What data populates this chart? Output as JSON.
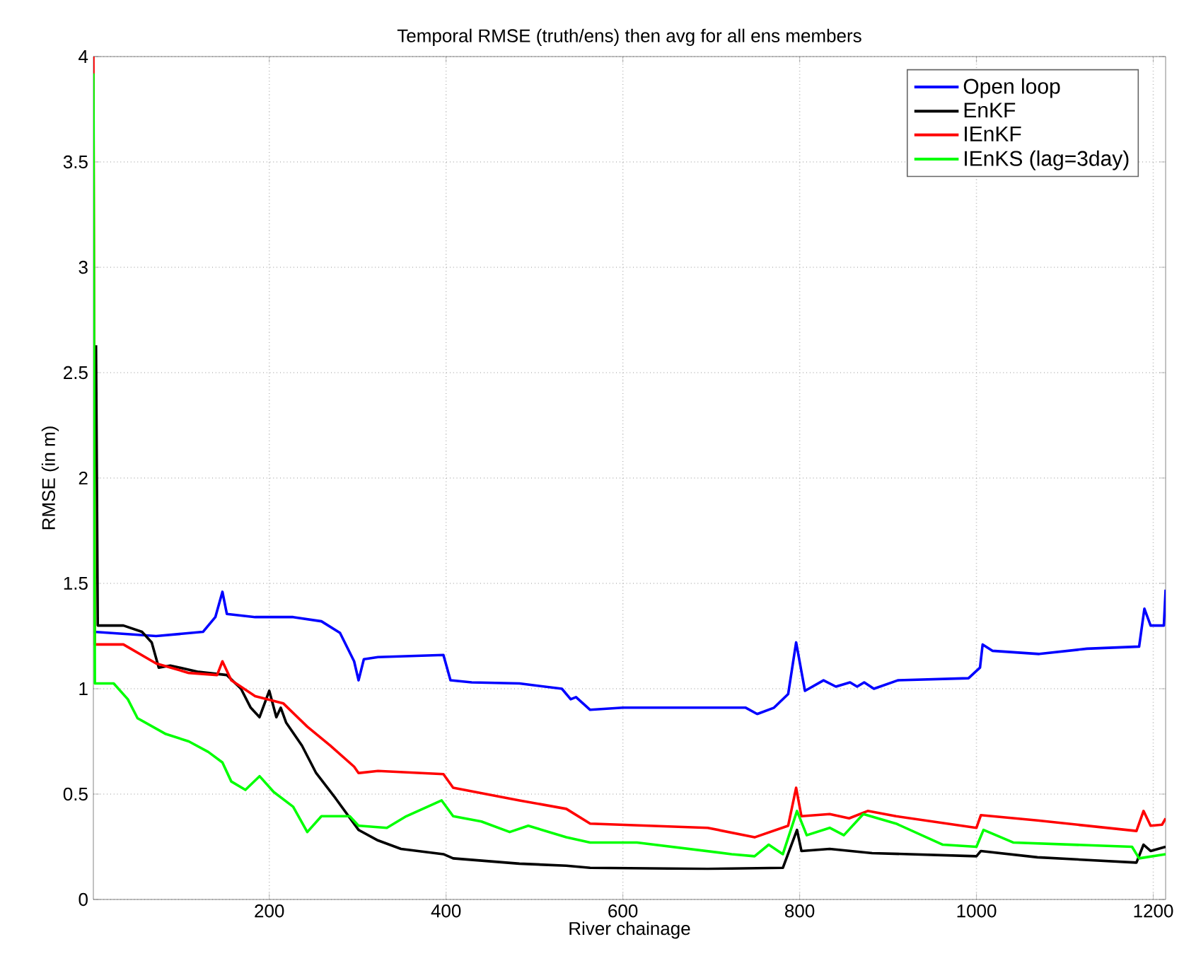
{
  "chart_data": {
    "type": "line",
    "title": "Temporal RMSE (truth/ens) then avg for all ens members",
    "xlabel": "River chainage",
    "ylabel": "RMSE (in m)",
    "xlim": [
      1,
      1214
    ],
    "ylim": [
      0,
      4
    ],
    "xticks": [
      200,
      400,
      600,
      800,
      1000,
      1200
    ],
    "yticks": [
      0,
      0.5,
      1,
      1.5,
      2,
      2.5,
      3,
      3.5,
      4
    ],
    "grid": true,
    "legend": "top right",
    "marker": "none",
    "line_style": "solid",
    "series": [
      {
        "name": "Open loop",
        "color": "#0000ff",
        "x": [
          1.6,
          72,
          125,
          139,
          147,
          152,
          184,
          227,
          259,
          280,
          296,
          301,
          307,
          323,
          397,
          405,
          429,
          483,
          531,
          541,
          547,
          563,
          600,
          669,
          739,
          752,
          771,
          787,
          796,
          806,
          827,
          841,
          857,
          865,
          873,
          884,
          911,
          991,
          1004,
          1007,
          1018,
          1071,
          1125,
          1184,
          1190,
          1197,
          1212,
          1214
        ],
        "values": [
          1.27,
          1.25,
          1.27,
          1.34,
          1.46,
          1.355,
          1.34,
          1.34,
          1.32,
          1.265,
          1.13,
          1.04,
          1.14,
          1.15,
          1.16,
          1.04,
          1.03,
          1.025,
          1.0,
          0.95,
          0.96,
          0.9,
          0.91,
          0.91,
          0.91,
          0.88,
          0.91,
          0.975,
          1.22,
          0.99,
          1.04,
          1.01,
          1.03,
          1.01,
          1.03,
          1.0,
          1.04,
          1.05,
          1.1,
          1.21,
          1.18,
          1.165,
          1.19,
          1.2,
          1.38,
          1.3,
          1.3,
          1.47
        ]
      },
      {
        "name": "EnKF",
        "color": "#000000",
        "x": [
          4,
          6,
          35,
          56,
          67,
          75,
          88,
          120,
          152,
          168,
          179,
          189,
          200,
          208,
          213,
          219,
          237,
          253,
          275,
          301,
          323,
          349,
          397,
          408,
          483,
          536,
          563,
          696,
          781,
          797,
          802,
          834,
          882,
          1000,
          1005,
          1069,
          1181,
          1189,
          1197,
          1214
        ],
        "values": [
          2.63,
          1.3,
          1.3,
          1.27,
          1.22,
          1.1,
          1.11,
          1.08,
          1.065,
          1.0,
          0.91,
          0.865,
          0.99,
          0.865,
          0.91,
          0.84,
          0.73,
          0.6,
          0.48,
          0.33,
          0.28,
          0.24,
          0.215,
          0.195,
          0.17,
          0.16,
          0.15,
          0.145,
          0.15,
          0.33,
          0.23,
          0.24,
          0.22,
          0.205,
          0.23,
          0.2,
          0.175,
          0.26,
          0.23,
          0.25
        ]
      },
      {
        "name": "IEnKF",
        "color": "#ff0000",
        "x": [
          1,
          2.7,
          35,
          72,
          109,
          141,
          147,
          157,
          184,
          216,
          243,
          269,
          296,
          301,
          323,
          397,
          408,
          483,
          536,
          563,
          696,
          749,
          787,
          796,
          802,
          834,
          856,
          877,
          909,
          1000,
          1005,
          1069,
          1181,
          1189,
          1197,
          1210,
          1214
        ],
        "values": [
          4.0,
          1.21,
          1.21,
          1.12,
          1.075,
          1.065,
          1.13,
          1.04,
          0.965,
          0.93,
          0.82,
          0.73,
          0.63,
          0.6,
          0.61,
          0.595,
          0.53,
          0.47,
          0.43,
          0.36,
          0.34,
          0.295,
          0.35,
          0.53,
          0.395,
          0.405,
          0.385,
          0.42,
          0.395,
          0.34,
          0.4,
          0.375,
          0.325,
          0.42,
          0.35,
          0.355,
          0.385
        ]
      },
      {
        "name": "IEnKS (lag=3day)",
        "color": "#00ff00",
        "x": [
          1,
          2.7,
          24,
          40,
          51,
          83,
          109,
          131,
          147,
          157,
          173,
          189,
          205,
          227,
          243,
          259,
          291,
          301,
          333,
          355,
          395,
          408,
          440,
          472,
          493,
          536,
          563,
          616,
          723,
          749,
          765,
          781,
          797,
          808,
          834,
          850,
          872,
          909,
          962,
          1000,
          1008,
          1042,
          1176,
          1184,
          1214
        ],
        "values": [
          3.92,
          1.025,
          1.025,
          0.95,
          0.86,
          0.785,
          0.75,
          0.7,
          0.65,
          0.56,
          0.52,
          0.585,
          0.51,
          0.44,
          0.32,
          0.395,
          0.395,
          0.35,
          0.34,
          0.395,
          0.47,
          0.395,
          0.37,
          0.32,
          0.35,
          0.295,
          0.27,
          0.27,
          0.215,
          0.205,
          0.26,
          0.215,
          0.42,
          0.305,
          0.34,
          0.305,
          0.405,
          0.36,
          0.26,
          0.25,
          0.33,
          0.27,
          0.25,
          0.195,
          0.215
        ]
      }
    ]
  }
}
